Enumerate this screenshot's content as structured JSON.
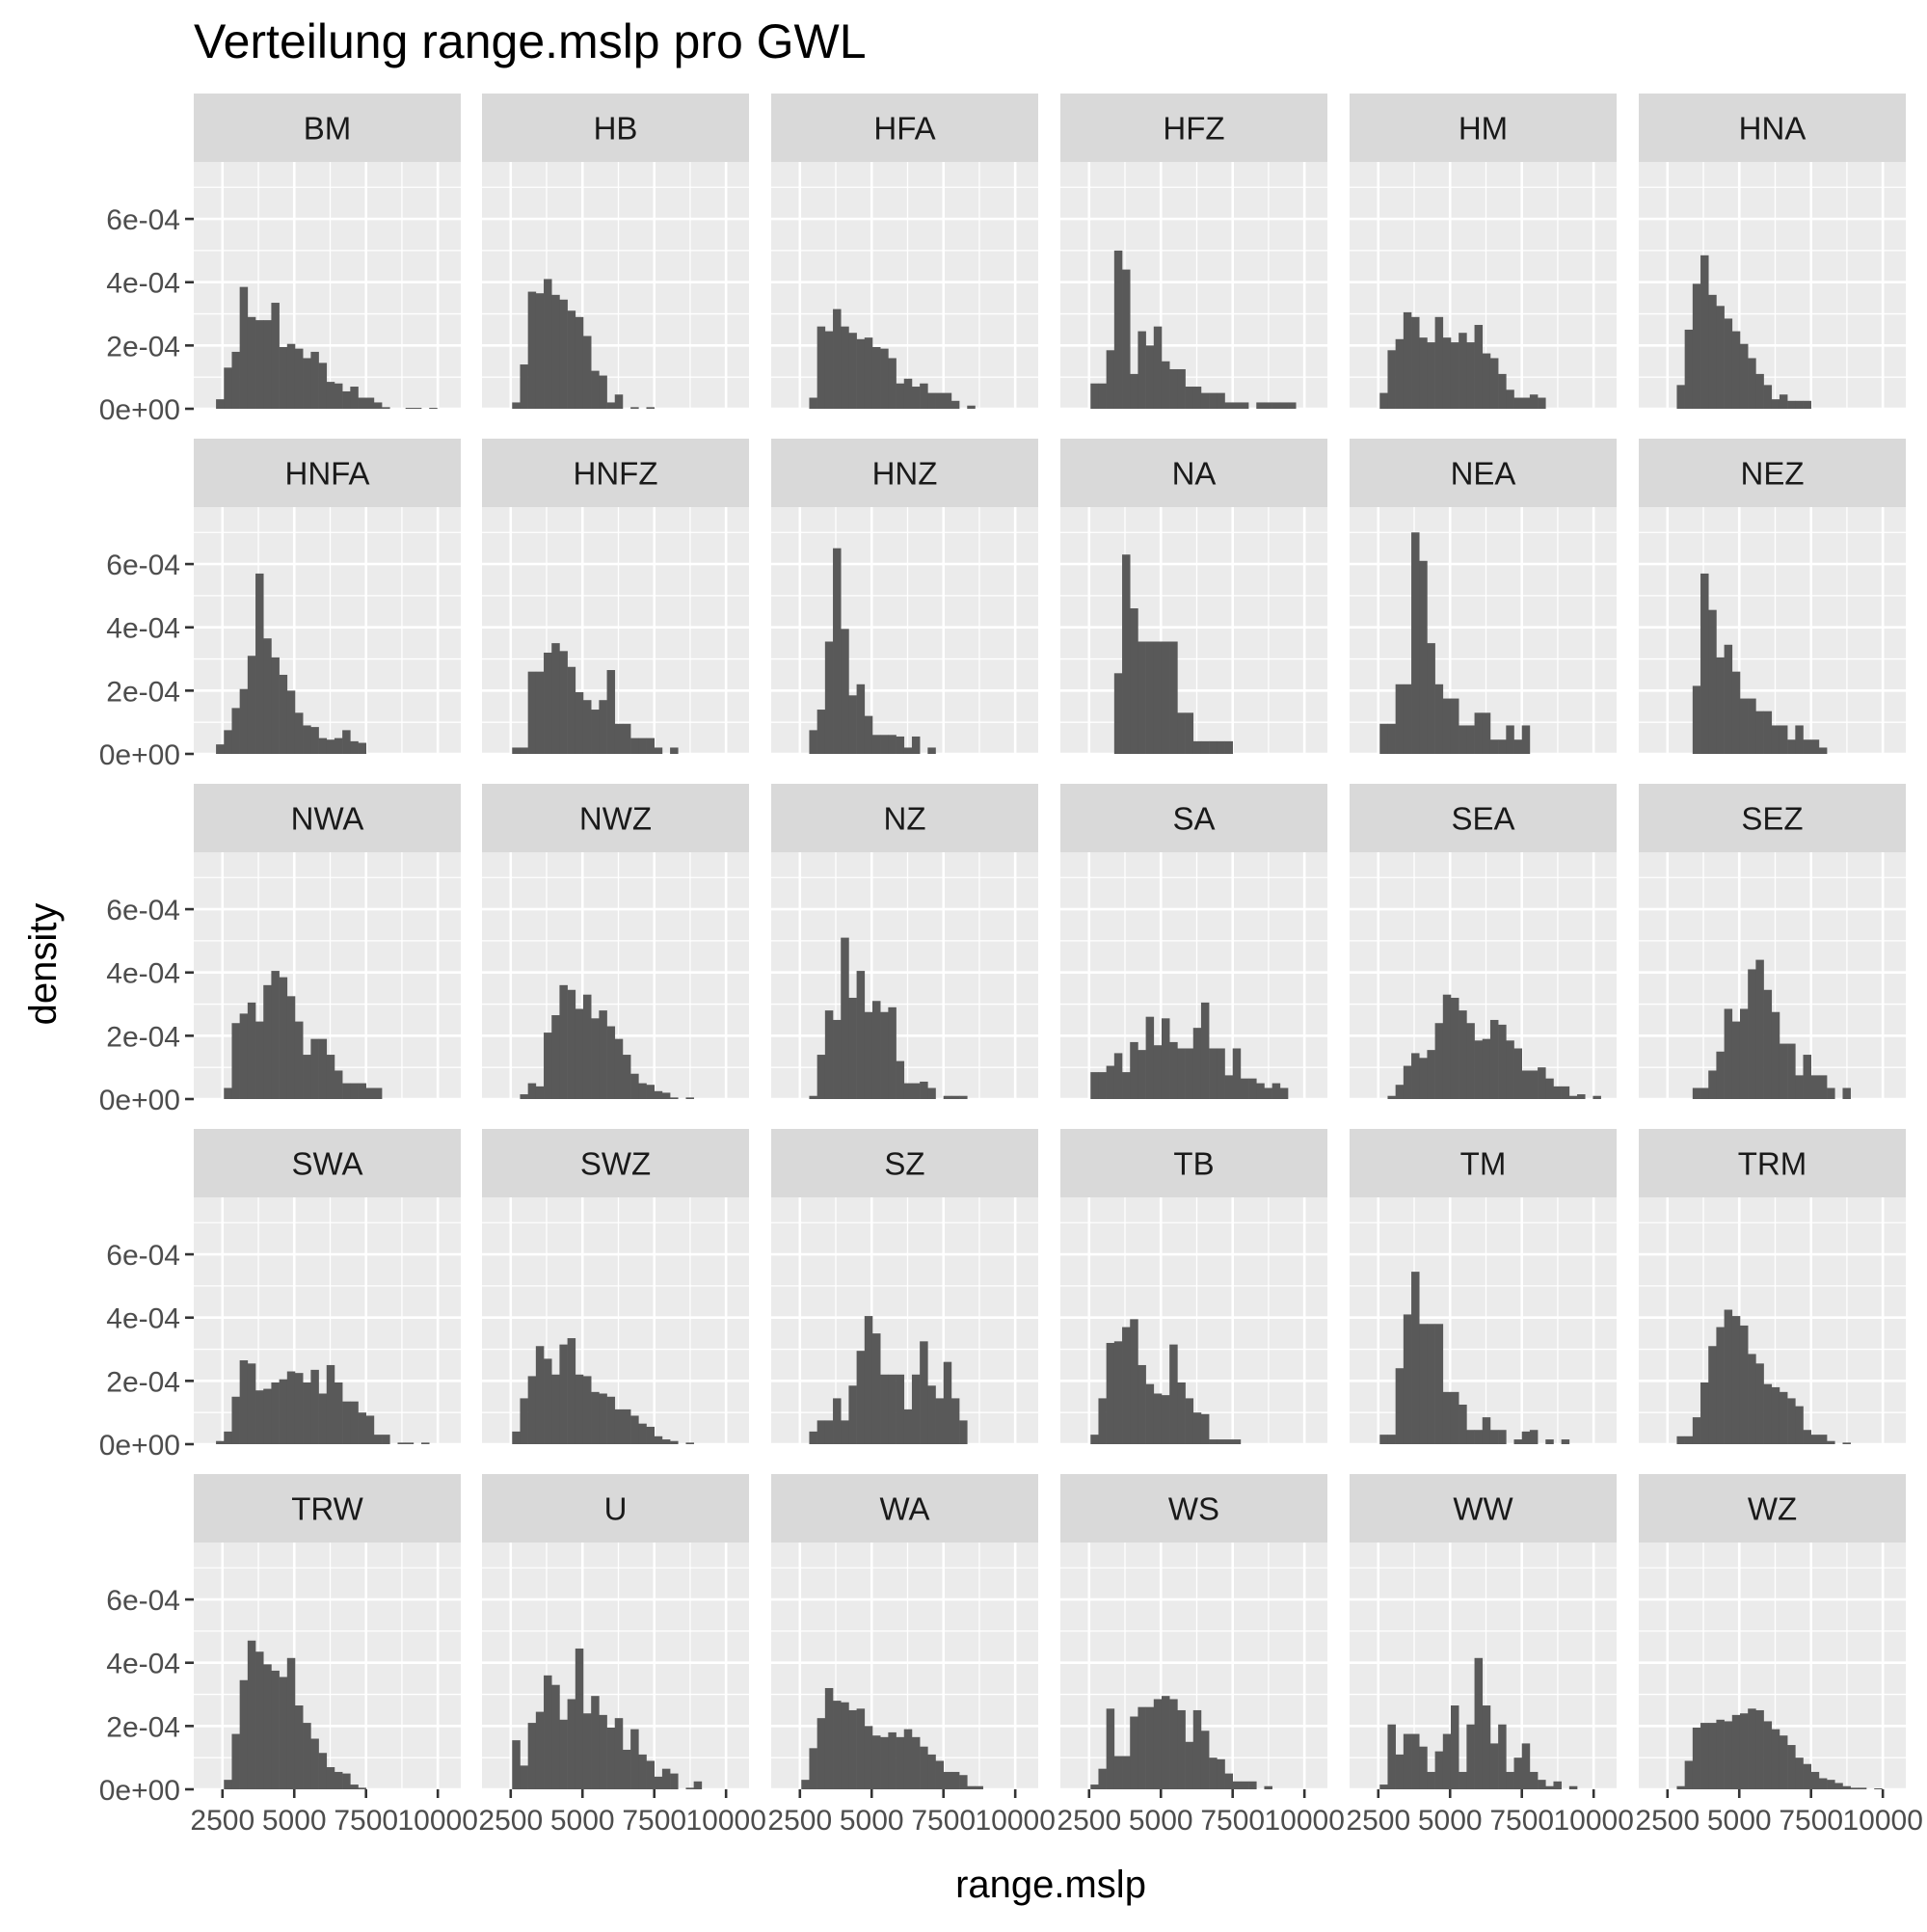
{
  "chart_data": {
    "type": "histogram-facet",
    "title": "Verteilung range.mslp pro GWL",
    "xlabel": "range.mslp",
    "ylabel": "density",
    "xlim": [
      1500,
      10800
    ],
    "ylim": [
      0,
      0.00078
    ],
    "x_ticks": [
      2500,
      5000,
      7500,
      10000
    ],
    "x_tick_labels": [
      "2500",
      "5000",
      "7500",
      "10000"
    ],
    "y_ticks": [
      0,
      0.0002,
      0.0004,
      0.0006
    ],
    "y_tick_labels": [
      "0e+00",
      "2e-04",
      "4e-04",
      "6e-04"
    ],
    "bin_start": 2000,
    "bin_width": 275,
    "grid": true,
    "bar_color": "#595959",
    "panel_bg": "#ebebeb",
    "strip_bg": "#d9d9d9",
    "panels": [
      {
        "name": "BM",
        "density": [
          0,
          3e-05,
          0.00013,
          0.00018,
          0.000385,
          0.00029,
          0.00028,
          0.00028,
          0.000335,
          0.000195,
          0.000205,
          0.00019,
          0.00016,
          0.00018,
          0.000145,
          8.5e-05,
          8e-05,
          5.5e-05,
          7e-05,
          3.5e-05,
          3.5e-05,
          2e-05,
          5e-06,
          0,
          0,
          3e-06,
          3e-06,
          0,
          3e-06,
          0,
          0,
          0
        ]
      },
      {
        "name": "HB",
        "density": [
          0,
          0,
          2e-05,
          0.00014,
          0.00037,
          0.000365,
          0.00041,
          0.00036,
          0.000345,
          0.00031,
          0.00029,
          0.00023,
          0.00012,
          0.000105,
          2e-05,
          4.5e-05,
          0,
          5e-06,
          0,
          5e-06,
          0,
          0,
          0,
          0,
          0,
          0,
          0,
          0,
          0,
          0,
          0,
          0
        ]
      },
      {
        "name": "HFA",
        "density": [
          0,
          0,
          0,
          3.5e-05,
          0.00026,
          0.000245,
          0.000315,
          0.00026,
          0.00024,
          0.00022,
          0.000225,
          0.000195,
          0.00019,
          0.00016,
          8e-05,
          9.5e-05,
          7e-05,
          8e-05,
          5e-05,
          5e-05,
          5e-05,
          2.5e-05,
          0,
          1e-05,
          0,
          0,
          0,
          0,
          0,
          0,
          0,
          0
        ]
      },
      {
        "name": "HFZ",
        "density": [
          0,
          0,
          8e-05,
          8e-05,
          0.000185,
          0.0005,
          0.00044,
          0.00011,
          0.000245,
          0.0002,
          0.00026,
          0.00015,
          0.000125,
          0.000125,
          7e-05,
          7e-05,
          5e-05,
          5e-05,
          5e-05,
          2e-05,
          2e-05,
          2e-05,
          0,
          2e-05,
          2e-05,
          2e-05,
          2e-05,
          2e-05,
          0,
          0,
          0,
          0
        ]
      },
      {
        "name": "HM",
        "density": [
          0,
          0,
          5e-05,
          0.000185,
          0.00022,
          0.000305,
          0.00029,
          0.000225,
          0.00021,
          0.00029,
          0.000225,
          0.00021,
          0.00024,
          0.00021,
          0.000265,
          0.000175,
          0.00016,
          0.00011,
          6e-05,
          3.5e-05,
          3.5e-05,
          4.5e-05,
          3.5e-05,
          0,
          0,
          0,
          0,
          0,
          0,
          0,
          0,
          0
        ]
      },
      {
        "name": "HNA",
        "density": [
          0,
          0,
          0,
          7.5e-05,
          0.00025,
          0.000395,
          0.000485,
          0.00036,
          0.000325,
          0.000285,
          0.000245,
          0.000205,
          0.00016,
          0.00011,
          7.5e-05,
          3e-05,
          4.5e-05,
          2.5e-05,
          2.5e-05,
          2.5e-05,
          0,
          0,
          0,
          0,
          0,
          0,
          0,
          0,
          0,
          0,
          0,
          0
        ]
      },
      {
        "name": "HNFA",
        "density": [
          0,
          3e-05,
          7.5e-05,
          0.000145,
          0.000205,
          0.00031,
          0.00057,
          0.000365,
          0.000305,
          0.00025,
          0.0002,
          0.00013,
          9e-05,
          8.5e-05,
          5e-05,
          4.5e-05,
          5e-05,
          7.5e-05,
          4e-05,
          3.5e-05,
          0,
          0,
          0,
          0,
          0,
          0,
          0,
          0,
          0,
          0,
          0,
          0
        ]
      },
      {
        "name": "HNFZ",
        "density": [
          0,
          0,
          2e-05,
          2e-05,
          0.00026,
          0.00026,
          0.00032,
          0.00035,
          0.000325,
          0.000275,
          0.000195,
          0.00017,
          0.00014,
          0.00017,
          0.000265,
          9.5e-05,
          9.5e-05,
          5e-05,
          5e-05,
          5e-05,
          2e-05,
          0,
          2e-05,
          0,
          0,
          0,
          0,
          0,
          0,
          0,
          0,
          0
        ]
      },
      {
        "name": "HNZ",
        "density": [
          0,
          0,
          0,
          7.5e-05,
          0.00014,
          0.000355,
          0.00065,
          0.000395,
          0.000185,
          0.00022,
          0.00012,
          6e-05,
          6e-05,
          6e-05,
          5.5e-05,
          2e-05,
          5.5e-05,
          0,
          2e-05,
          0,
          0,
          0,
          0,
          0,
          0,
          0,
          0,
          0,
          0,
          0,
          0,
          0
        ]
      },
      {
        "name": "NA",
        "density": [
          0,
          0,
          0,
          0,
          0,
          0.000255,
          0.00063,
          0.00046,
          0.000355,
          0.000355,
          0.000355,
          0.000355,
          0.000355,
          0.00013,
          0.00013,
          4e-05,
          4e-05,
          4e-05,
          4e-05,
          4e-05,
          0,
          0,
          0,
          0,
          0,
          0,
          0,
          0,
          0,
          0,
          0,
          0
        ]
      },
      {
        "name": "NEA",
        "density": [
          0,
          0,
          9.5e-05,
          9.5e-05,
          0.00022,
          0.00022,
          0.0007,
          0.00061,
          0.00035,
          0.00022,
          0.000175,
          0.000175,
          9e-05,
          9e-05,
          0.00013,
          0.00013,
          4.5e-05,
          4.5e-05,
          9e-05,
          4.5e-05,
          9e-05,
          0,
          0,
          0,
          0,
          0,
          0,
          0,
          0,
          0,
          0,
          0
        ]
      },
      {
        "name": "NEZ",
        "density": [
          0,
          0,
          0,
          0,
          0,
          0.000215,
          0.00057,
          0.000455,
          0.000305,
          0.000345,
          0.00026,
          0.000175,
          0.000175,
          0.000135,
          0.000135,
          9e-05,
          9e-05,
          4.5e-05,
          9e-05,
          4.5e-05,
          4.5e-05,
          2e-05,
          0,
          0,
          0,
          0,
          0,
          0,
          0,
          0,
          0,
          0
        ]
      },
      {
        "name": "NWA",
        "density": [
          0,
          0,
          3.5e-05,
          0.00024,
          0.00027,
          0.000305,
          0.000245,
          0.00036,
          0.000405,
          0.000385,
          0.000325,
          0.000245,
          0.00014,
          0.00019,
          0.00019,
          0.00014,
          9e-05,
          5e-05,
          5e-05,
          5e-05,
          3.5e-05,
          3.5e-05,
          0,
          0,
          0,
          0,
          0,
          0,
          0,
          0,
          0,
          0
        ]
      },
      {
        "name": "NWZ",
        "density": [
          0,
          0,
          0,
          1.5e-05,
          5e-05,
          4e-05,
          0.00021,
          0.000265,
          0.00036,
          0.000345,
          0.000285,
          0.00033,
          0.000255,
          0.00028,
          0.00023,
          0.00019,
          0.00014,
          8e-05,
          5e-05,
          4.5e-05,
          2.5e-05,
          2e-05,
          5e-06,
          0,
          5e-06,
          0,
          0,
          0,
          0,
          0,
          0,
          0
        ]
      },
      {
        "name": "NZ",
        "density": [
          0,
          0,
          0,
          1e-05,
          0.00014,
          0.00028,
          0.00025,
          0.00051,
          0.00032,
          0.000405,
          0.000275,
          0.00031,
          0.000275,
          0.00029,
          0.00012,
          5e-05,
          5e-05,
          5.5e-05,
          3.5e-05,
          0,
          1e-05,
          1e-05,
          1e-05,
          0,
          0,
          0,
          0,
          0,
          0,
          0,
          0,
          0
        ]
      },
      {
        "name": "SA",
        "density": [
          0,
          0,
          8.5e-05,
          8.5e-05,
          0.000105,
          0.000145,
          8.5e-05,
          0.00018,
          0.000155,
          0.00026,
          0.00017,
          0.000255,
          0.00018,
          0.00016,
          0.00016,
          0.000225,
          0.000305,
          0.00016,
          0.00016,
          7.5e-05,
          0.00016,
          6.5e-05,
          6.5e-05,
          5e-05,
          3.5e-05,
          5e-05,
          3.5e-05,
          0,
          0,
          0,
          0,
          0
        ]
      },
      {
        "name": "SEA",
        "density": [
          0,
          0,
          0,
          1e-05,
          4.5e-05,
          0.000105,
          0.000145,
          0.00013,
          0.000155,
          0.00024,
          0.00033,
          0.00032,
          0.00028,
          0.00024,
          0.000185,
          0.00019,
          0.00025,
          0.000235,
          0.000185,
          0.00016,
          9e-05,
          9e-05,
          0.0001,
          6.5e-05,
          4e-05,
          4e-05,
          1e-05,
          1.5e-05,
          0,
          1e-05,
          0,
          0
        ]
      },
      {
        "name": "SEZ",
        "density": [
          0,
          0,
          0,
          0,
          0,
          3.5e-05,
          3.5e-05,
          9e-05,
          0.00015,
          0.000285,
          0.000245,
          0.000285,
          0.00041,
          0.00044,
          0.000345,
          0.000275,
          0.000175,
          0.000175,
          7.5e-05,
          0.00014,
          7.5e-05,
          7.5e-05,
          3.5e-05,
          0,
          3.5e-05,
          0,
          0,
          0,
          0,
          0,
          0,
          0
        ]
      },
      {
        "name": "SWA",
        "density": [
          0,
          1e-05,
          4e-05,
          0.00015,
          0.000265,
          0.000255,
          0.00017,
          0.000175,
          0.000195,
          0.000205,
          0.00023,
          0.000225,
          0.000195,
          0.000235,
          0.00016,
          0.00025,
          0.000195,
          0.000135,
          0.000135,
          0.0001,
          9e-05,
          3e-05,
          3e-05,
          0,
          5e-06,
          5e-06,
          0,
          5e-06,
          0,
          0,
          0,
          0
        ]
      },
      {
        "name": "SWZ",
        "density": [
          0,
          0,
          4e-05,
          0.000145,
          0.000215,
          0.00031,
          0.00027,
          0.00022,
          0.000315,
          0.000335,
          0.00022,
          0.000215,
          0.000165,
          0.00016,
          0.00015,
          0.00011,
          0.00011,
          9e-05,
          6.5e-05,
          5.5e-05,
          2.5e-05,
          1.5e-05,
          1e-05,
          0,
          5e-06,
          0,
          0,
          0,
          0,
          0,
          0,
          0
        ]
      },
      {
        "name": "SZ",
        "density": [
          0,
          0,
          0,
          4e-05,
          7.5e-05,
          7.5e-05,
          0.000145,
          7.5e-05,
          0.000185,
          0.000295,
          0.000405,
          0.00035,
          0.00022,
          0.00022,
          0.00022,
          0.00011,
          0.00022,
          0.000325,
          0.000185,
          0.000145,
          0.00026,
          0.000145,
          7.5e-05,
          0,
          0,
          0,
          0,
          0,
          0,
          0,
          0,
          0
        ]
      },
      {
        "name": "TB",
        "density": [
          0,
          0,
          3e-05,
          0.000145,
          0.00032,
          0.000325,
          0.00037,
          0.000395,
          0.00025,
          0.00019,
          0.00016,
          0.000155,
          0.000315,
          0.000195,
          0.000145,
          0.0001,
          9.5e-05,
          1.5e-05,
          1.5e-05,
          1.5e-05,
          1.5e-05,
          0,
          0,
          0,
          0,
          0,
          0,
          0,
          0,
          0,
          0,
          0
        ]
      },
      {
        "name": "TM",
        "density": [
          0,
          0,
          3e-05,
          3e-05,
          0.00024,
          0.00041,
          0.000545,
          0.00038,
          0.00038,
          0.00038,
          0.000165,
          0.000165,
          0.000125,
          4.5e-05,
          4.5e-05,
          8.5e-05,
          4.5e-05,
          4.5e-05,
          0,
          1.5e-05,
          4e-05,
          4.5e-05,
          0,
          1.5e-05,
          0,
          1.5e-05,
          0,
          0,
          0,
          0,
          0,
          0
        ]
      },
      {
        "name": "TRM",
        "density": [
          0,
          0,
          0,
          2.5e-05,
          2.5e-05,
          8.5e-05,
          0.000195,
          0.00031,
          0.00037,
          0.000425,
          0.000405,
          0.000375,
          0.000285,
          0.000255,
          0.00019,
          0.00018,
          0.000165,
          0.000145,
          0.00012,
          4.5e-05,
          3e-05,
          3e-05,
          1e-05,
          0,
          5e-06,
          0,
          0,
          0,
          0,
          0,
          0,
          0
        ]
      },
      {
        "name": "TRW",
        "density": [
          0,
          0,
          3e-05,
          0.000175,
          0.000345,
          0.00047,
          0.000435,
          0.000395,
          0.000375,
          0.000355,
          0.000415,
          0.000265,
          0.00021,
          0.00016,
          0.000115,
          7e-05,
          5.5e-05,
          5e-05,
          1.5e-05,
          5e-06,
          0,
          0,
          0,
          0,
          0,
          0,
          0,
          0,
          0,
          0,
          0,
          0
        ]
      },
      {
        "name": "U",
        "density": [
          0,
          0,
          0.000155,
          7.5e-05,
          0.00021,
          0.000245,
          0.00036,
          0.00033,
          0.00022,
          0.000285,
          0.000445,
          0.00024,
          0.000295,
          0.000235,
          0.000195,
          0.000225,
          0.000125,
          0.00019,
          0.00011,
          9e-05,
          4e-05,
          6.5e-05,
          5e-05,
          0,
          5e-06,
          2.5e-05,
          0,
          0,
          0,
          0,
          0,
          0
        ]
      },
      {
        "name": "WA",
        "density": [
          0,
          0,
          3e-05,
          0.00013,
          0.000225,
          0.00032,
          0.00028,
          0.000275,
          0.00025,
          0.000255,
          0.0002,
          0.00017,
          0.000165,
          0.00018,
          0.000165,
          0.00019,
          0.000165,
          0.000135,
          0.00011,
          9e-05,
          5.5e-05,
          5.5e-05,
          4.5e-05,
          1e-05,
          1e-05,
          0,
          0,
          0,
          0,
          0,
          0,
          0
        ]
      },
      {
        "name": "WS",
        "density": [
          0,
          0,
          1.5e-05,
          6.5e-05,
          0.000255,
          0.000105,
          0.000105,
          0.00023,
          0.00026,
          0.00026,
          0.000285,
          0.000295,
          0.000285,
          0.00025,
          0.00015,
          0.00025,
          0.000185,
          0.0001,
          9.5e-05,
          5e-05,
          2.5e-05,
          2.5e-05,
          2.5e-05,
          0,
          1e-05,
          0,
          0,
          0,
          0,
          0,
          0,
          0
        ]
      },
      {
        "name": "WW",
        "density": [
          0,
          0,
          1.5e-05,
          0.000205,
          0.00011,
          0.000175,
          0.000175,
          0.000135,
          5.5e-05,
          0.00012,
          0.000175,
          0.000265,
          5.5e-05,
          0.000205,
          0.000415,
          0.000265,
          0.000145,
          0.000205,
          5.5e-05,
          0.0001,
          0.000145,
          5.5e-05,
          3e-05,
          1e-05,
          2.5e-05,
          0,
          1e-05,
          0,
          0,
          0,
          0,
          0
        ]
      },
      {
        "name": "WZ",
        "density": [
          0,
          0,
          0,
          1e-05,
          9e-05,
          0.000195,
          0.00021,
          0.00021,
          0.00022,
          0.000215,
          0.000235,
          0.00024,
          0.000255,
          0.00025,
          0.000215,
          0.00019,
          0.00017,
          0.00014,
          0.0001,
          8e-05,
          5.5e-05,
          3.5e-05,
          3e-05,
          2e-05,
          1e-05,
          5e-06,
          5e-06,
          0,
          3e-06,
          0,
          0,
          0
        ]
      }
    ]
  }
}
